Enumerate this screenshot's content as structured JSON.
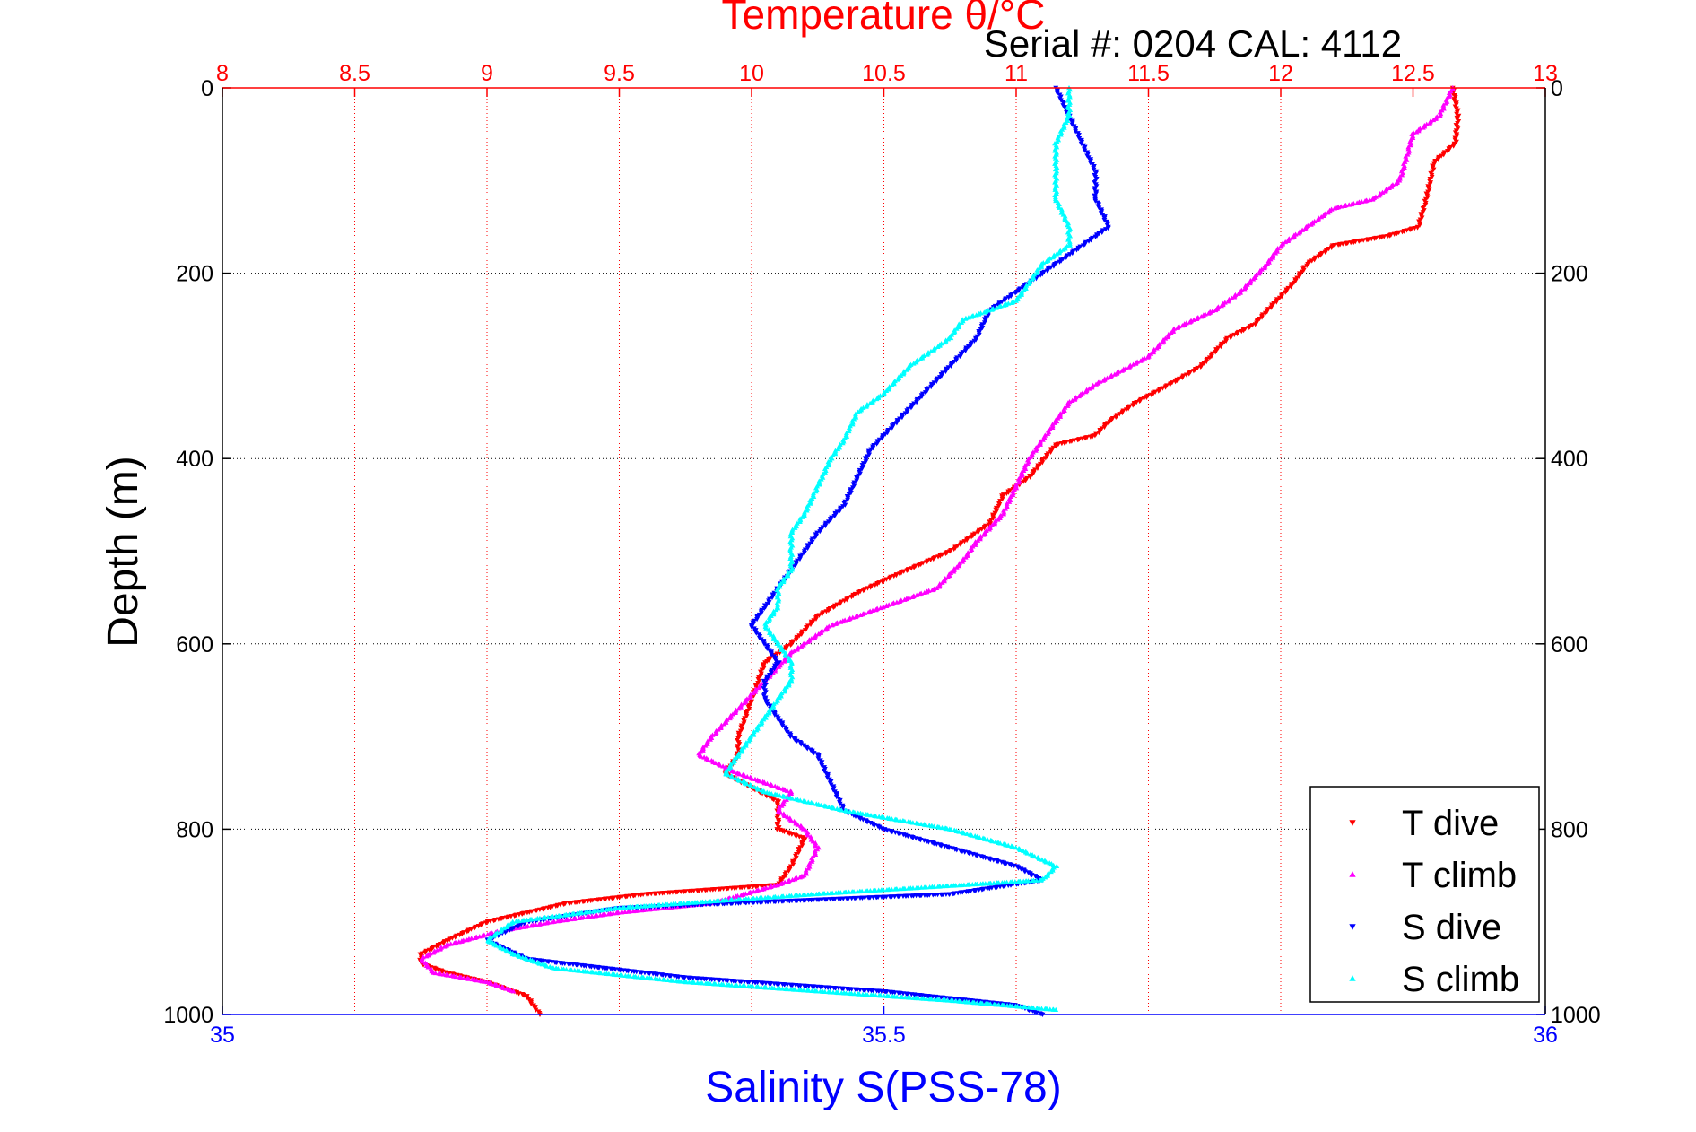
{
  "chart_data": {
    "type": "scatter",
    "title": "Temperature θ/°C",
    "subtitle": "Serial #: 0204  CAL: 4112",
    "ylabel": "Depth (m)",
    "xlabel": "Salinity S(PSS-78)",
    "depth_axis": {
      "range": [
        0,
        1000
      ],
      "ticks": [
        "0",
        "200",
        "400",
        "600",
        "800",
        "1000"
      ],
      "reversed": true
    },
    "temperature_axis": {
      "range": [
        8,
        13
      ],
      "ticks": [
        "8",
        "8.5",
        "9",
        "9.5",
        "10",
        "10.5",
        "11",
        "11.5",
        "12",
        "12.5",
        "13"
      ],
      "position": "top",
      "color": "#ff0000"
    },
    "salinity_axis": {
      "range": [
        35,
        36
      ],
      "ticks": [
        "35",
        "35.5",
        "36"
      ],
      "position": "bottom",
      "color": "#0000ff"
    },
    "grid": true,
    "legend_position": "bottom-right",
    "series": [
      {
        "name": "T dive",
        "axis": "temperature",
        "color": "#ff0000",
        "marker": "triangle-down",
        "points": [
          [
            12.65,
            0
          ],
          [
            12.67,
            30
          ],
          [
            12.66,
            60
          ],
          [
            12.58,
            80
          ],
          [
            12.55,
            120
          ],
          [
            12.52,
            150
          ],
          [
            12.4,
            160
          ],
          [
            12.2,
            170
          ],
          [
            12.1,
            190
          ],
          [
            12.05,
            210
          ],
          [
            11.95,
            240
          ],
          [
            11.9,
            255
          ],
          [
            11.8,
            270
          ],
          [
            11.7,
            300
          ],
          [
            11.58,
            320
          ],
          [
            11.45,
            340
          ],
          [
            11.35,
            360
          ],
          [
            11.3,
            375
          ],
          [
            11.15,
            385
          ],
          [
            11.05,
            420
          ],
          [
            10.95,
            440
          ],
          [
            10.9,
            470
          ],
          [
            10.75,
            500
          ],
          [
            10.55,
            525
          ],
          [
            10.4,
            545
          ],
          [
            10.25,
            570
          ],
          [
            10.15,
            600
          ],
          [
            10.05,
            620
          ],
          [
            10.0,
            660
          ],
          [
            9.95,
            700
          ],
          [
            9.95,
            720
          ],
          [
            9.9,
            740
          ],
          [
            10.1,
            770
          ],
          [
            10.1,
            800
          ],
          [
            10.2,
            810
          ],
          [
            10.15,
            840
          ],
          [
            10.1,
            860
          ],
          [
            9.6,
            870
          ],
          [
            9.3,
            880
          ],
          [
            9.0,
            900
          ],
          [
            8.85,
            920
          ],
          [
            8.75,
            935
          ],
          [
            8.75,
            945
          ],
          [
            8.85,
            955
          ],
          [
            9.0,
            965
          ],
          [
            9.15,
            980
          ],
          [
            9.2,
            1000
          ]
        ]
      },
      {
        "name": "T climb",
        "axis": "temperature",
        "color": "#ff00ff",
        "marker": "triangle-up",
        "points": [
          [
            12.65,
            0
          ],
          [
            12.6,
            30
          ],
          [
            12.5,
            50
          ],
          [
            12.48,
            70
          ],
          [
            12.45,
            100
          ],
          [
            12.35,
            120
          ],
          [
            12.2,
            130
          ],
          [
            12.1,
            150
          ],
          [
            12.0,
            170
          ],
          [
            11.95,
            190
          ],
          [
            11.85,
            220
          ],
          [
            11.75,
            240
          ],
          [
            11.6,
            260
          ],
          [
            11.5,
            290
          ],
          [
            11.3,
            320
          ],
          [
            11.2,
            340
          ],
          [
            11.15,
            360
          ],
          [
            11.05,
            400
          ],
          [
            11.0,
            430
          ],
          [
            10.95,
            460
          ],
          [
            10.85,
            490
          ],
          [
            10.8,
            510
          ],
          [
            10.7,
            540
          ],
          [
            10.5,
            560
          ],
          [
            10.3,
            580
          ],
          [
            10.15,
            610
          ],
          [
            10.05,
            640
          ],
          [
            9.95,
            670
          ],
          [
            9.85,
            700
          ],
          [
            9.8,
            720
          ],
          [
            9.95,
            740
          ],
          [
            10.15,
            760
          ],
          [
            10.1,
            780
          ],
          [
            10.2,
            800
          ],
          [
            10.25,
            820
          ],
          [
            10.2,
            850
          ],
          [
            10.1,
            860
          ],
          [
            9.85,
            880
          ],
          [
            9.5,
            890
          ],
          [
            9.25,
            900
          ],
          [
            9.05,
            910
          ],
          [
            8.85,
            925
          ],
          [
            8.75,
            940
          ],
          [
            8.8,
            955
          ],
          [
            9.0,
            965
          ],
          [
            9.1,
            975
          ]
        ]
      },
      {
        "name": "S dive",
        "axis": "salinity",
        "color": "#0000ff",
        "marker": "triangle-down",
        "points": [
          [
            35.63,
            0
          ],
          [
            35.64,
            30
          ],
          [
            35.65,
            60
          ],
          [
            35.66,
            90
          ],
          [
            35.66,
            120
          ],
          [
            35.67,
            150
          ],
          [
            35.65,
            170
          ],
          [
            35.63,
            190
          ],
          [
            35.6,
            220
          ],
          [
            35.58,
            240
          ],
          [
            35.57,
            270
          ],
          [
            35.55,
            300
          ],
          [
            35.53,
            330
          ],
          [
            35.51,
            360
          ],
          [
            35.49,
            390
          ],
          [
            35.48,
            420
          ],
          [
            35.47,
            450
          ],
          [
            35.45,
            480
          ],
          [
            35.44,
            500
          ],
          [
            35.43,
            520
          ],
          [
            35.42,
            540
          ],
          [
            35.41,
            560
          ],
          [
            35.4,
            580
          ],
          [
            35.41,
            600
          ],
          [
            35.42,
            620
          ],
          [
            35.41,
            640
          ],
          [
            35.41,
            660
          ],
          [
            35.42,
            680
          ],
          [
            35.43,
            700
          ],
          [
            35.45,
            720
          ],
          [
            35.46,
            750
          ],
          [
            35.47,
            780
          ],
          [
            35.5,
            800
          ],
          [
            35.55,
            820
          ],
          [
            35.6,
            840
          ],
          [
            35.62,
            855
          ],
          [
            35.55,
            870
          ],
          [
            35.3,
            885
          ],
          [
            35.23,
            900
          ],
          [
            35.2,
            920
          ],
          [
            35.23,
            940
          ],
          [
            35.35,
            960
          ],
          [
            35.5,
            975
          ],
          [
            35.6,
            990
          ],
          [
            35.62,
            1000
          ]
        ]
      },
      {
        "name": "S climb",
        "axis": "salinity",
        "color": "#00ffff",
        "marker": "triangle-up",
        "points": [
          [
            35.64,
            0
          ],
          [
            35.64,
            30
          ],
          [
            35.63,
            60
          ],
          [
            35.63,
            90
          ],
          [
            35.63,
            120
          ],
          [
            35.64,
            150
          ],
          [
            35.64,
            170
          ],
          [
            35.62,
            190
          ],
          [
            35.61,
            210
          ],
          [
            35.6,
            230
          ],
          [
            35.56,
            250
          ],
          [
            35.55,
            270
          ],
          [
            35.52,
            300
          ],
          [
            35.5,
            330
          ],
          [
            35.48,
            350
          ],
          [
            35.47,
            380
          ],
          [
            35.46,
            400
          ],
          [
            35.45,
            430
          ],
          [
            35.44,
            460
          ],
          [
            35.43,
            480
          ],
          [
            35.43,
            500
          ],
          [
            35.43,
            520
          ],
          [
            35.42,
            540
          ],
          [
            35.42,
            560
          ],
          [
            35.41,
            580
          ],
          [
            35.42,
            600
          ],
          [
            35.43,
            620
          ],
          [
            35.43,
            640
          ],
          [
            35.42,
            660
          ],
          [
            35.41,
            680
          ],
          [
            35.4,
            700
          ],
          [
            35.39,
            720
          ],
          [
            35.38,
            740
          ],
          [
            35.41,
            760
          ],
          [
            35.47,
            780
          ],
          [
            35.55,
            800
          ],
          [
            35.6,
            820
          ],
          [
            35.63,
            840
          ],
          [
            35.62,
            855
          ],
          [
            35.45,
            870
          ],
          [
            35.3,
            885
          ],
          [
            35.22,
            900
          ],
          [
            35.2,
            920
          ],
          [
            35.22,
            935
          ],
          [
            35.25,
            950
          ],
          [
            35.35,
            965
          ],
          [
            35.45,
            975
          ],
          [
            35.55,
            985
          ],
          [
            35.63,
            995
          ]
        ]
      }
    ]
  }
}
